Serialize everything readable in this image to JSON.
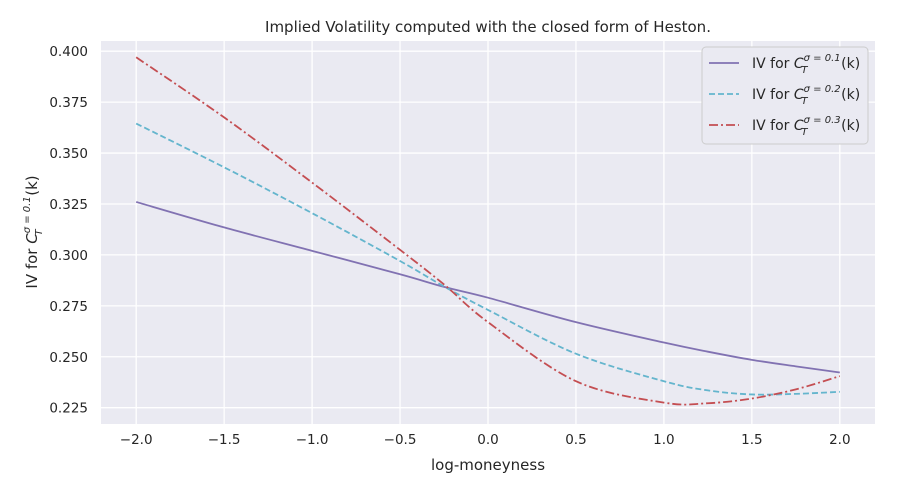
{
  "chart_data": {
    "type": "line",
    "title": "Implied Volatility computed with the closed form of Heston.",
    "xlabel": "log-moneyness",
    "ylabel": {
      "prefix": "IV for ",
      "var": "C",
      "sub": "T",
      "sup": "σ = 0.1",
      "suffix": "(k)"
    },
    "xlim": [
      -2.2,
      2.2
    ],
    "ylim": [
      0.217,
      0.405
    ],
    "x_ticks": [
      -2.0,
      -1.5,
      -1.0,
      -0.5,
      0.0,
      0.5,
      1.0,
      1.5,
      2.0
    ],
    "x_tick_labels": [
      "−2.0",
      "−1.5",
      "−1.0",
      "−0.5",
      "0.0",
      "0.5",
      "1.0",
      "1.5",
      "2.0"
    ],
    "y_ticks": [
      0.225,
      0.25,
      0.275,
      0.3,
      0.325,
      0.35,
      0.375,
      0.4
    ],
    "y_tick_labels": [
      "0.225",
      "0.250",
      "0.275",
      "0.300",
      "0.325",
      "0.350",
      "0.375",
      "0.400"
    ],
    "grid": true,
    "legend_position": "top-right",
    "x": [
      -2.0,
      -1.5,
      -1.0,
      -0.5,
      -0.25,
      0.0,
      0.5,
      1.0,
      1.25,
      1.5,
      1.75,
      2.0
    ],
    "series": [
      {
        "name": {
          "prefix": "IV for ",
          "var": "C",
          "sub": "T",
          "sup": "σ = 0.1",
          "suffix": "(k)"
        },
        "color": "#8172b2",
        "dash": "solid",
        "values": [
          0.326,
          0.3135,
          0.302,
          0.2905,
          0.2843,
          0.279,
          0.267,
          0.257,
          0.2525,
          0.2485,
          0.2453,
          0.2423
        ]
      },
      {
        "name": {
          "prefix": "IV for ",
          "var": "C",
          "sub": "T",
          "sup": "σ = 0.2",
          "suffix": "(k)"
        },
        "color": "#64b5cd",
        "dash": "dashed",
        "values": [
          0.3645,
          0.343,
          0.3205,
          0.297,
          0.2845,
          0.273,
          0.2515,
          0.238,
          0.2335,
          0.2315,
          0.2318,
          0.2328
        ]
      },
      {
        "name": {
          "prefix": "IV for ",
          "var": "C",
          "sub": "T",
          "sup": "σ = 0.3",
          "suffix": "(k)"
        },
        "color": "#c44e52",
        "dash": "dashdot",
        "values": [
          0.397,
          0.3675,
          0.3355,
          0.3025,
          0.2855,
          0.267,
          0.238,
          0.2275,
          0.2272,
          0.2295,
          0.234,
          0.2405
        ]
      }
    ]
  }
}
